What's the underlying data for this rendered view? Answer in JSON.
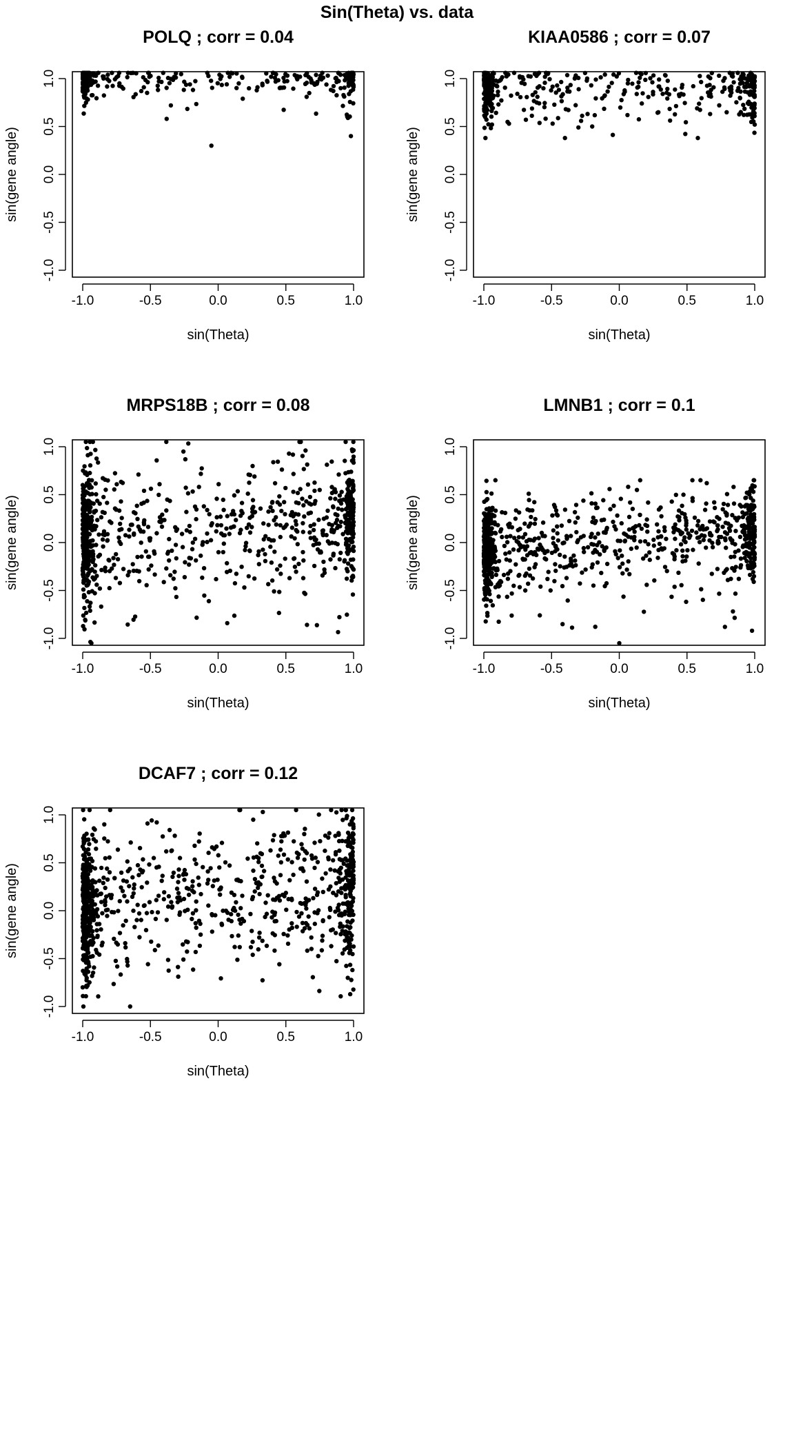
{
  "figure": {
    "title": "Sin(Theta) vs. data"
  },
  "chart_data": [
    {
      "type": "scatter",
      "gene": "POLQ",
      "corr": 0.04,
      "title": "POLQ ; corr =  0.04",
      "xlabel": "sin(Theta)",
      "ylabel": "sin(gene angle)",
      "xlim": [
        -1.0,
        1.0
      ],
      "ylim": [
        -1.0,
        1.0
      ],
      "xticks": [
        "-1.0",
        "-0.5",
        "0.0",
        "0.5",
        "1.0"
      ],
      "yticks": [
        "-1.0",
        "-0.5",
        "0.0",
        "0.5",
        "1.0"
      ],
      "n_points": 330,
      "y_range_observed": [
        0.3,
        1.05
      ],
      "point_color": "#000000"
    },
    {
      "type": "scatter",
      "gene": "KIAA0586",
      "corr": 0.07,
      "title": "KIAA0586 ; corr =  0.07",
      "xlabel": "sin(Theta)",
      "ylabel": "sin(gene angle)",
      "xlim": [
        -1.0,
        1.0
      ],
      "ylim": [
        -1.0,
        1.0
      ],
      "xticks": [
        "-1.0",
        "-0.5",
        "0.0",
        "0.5",
        "1.0"
      ],
      "yticks": [
        "-1.0",
        "-0.5",
        "0.0",
        "0.5",
        "1.0"
      ],
      "n_points": 430,
      "y_range_observed": [
        0.38,
        1.05
      ],
      "point_color": "#000000"
    },
    {
      "type": "scatter",
      "gene": "MRPS18B",
      "corr": 0.08,
      "title": "MRPS18B ; corr =  0.08",
      "xlabel": "sin(Theta)",
      "ylabel": "sin(gene angle)",
      "xlim": [
        -1.0,
        1.0
      ],
      "ylim": [
        -1.0,
        1.0
      ],
      "xticks": [
        "-1.0",
        "-0.5",
        "0.0",
        "0.5",
        "1.0"
      ],
      "yticks": [
        "-1.0",
        "-0.5",
        "0.0",
        "0.5",
        "1.0"
      ],
      "n_points": 900,
      "y_range_observed": [
        -1.05,
        1.05
      ],
      "point_color": "#000000"
    },
    {
      "type": "scatter",
      "gene": "LMNB1",
      "corr": 0.1,
      "title": "LMNB1 ; corr =  0.1",
      "xlabel": "sin(Theta)",
      "ylabel": "sin(gene angle)",
      "xlim": [
        -1.0,
        1.0
      ],
      "ylim": [
        -1.0,
        1.0
      ],
      "xticks": [
        "-1.0",
        "-0.5",
        "0.0",
        "0.5",
        "1.0"
      ],
      "yticks": [
        "-1.0",
        "-0.5",
        "0.0",
        "0.5",
        "1.0"
      ],
      "n_points": 950,
      "y_range_observed": [
        -1.05,
        0.65
      ],
      "point_color": "#000000"
    },
    {
      "type": "scatter",
      "gene": "DCAF7",
      "corr": 0.12,
      "title": "DCAF7 ; corr =  0.12",
      "xlabel": "sin(Theta)",
      "ylabel": "sin(gene angle)",
      "xlim": [
        -1.0,
        1.0
      ],
      "ylim": [
        -1.0,
        1.0
      ],
      "xticks": [
        "-1.0",
        "-0.5",
        "0.0",
        "0.5",
        "1.0"
      ],
      "yticks": [
        "-1.0",
        "-0.5",
        "0.0",
        "0.5",
        "1.0"
      ],
      "n_points": 950,
      "y_range_observed": [
        -1.0,
        1.05
      ],
      "point_color": "#000000"
    }
  ]
}
